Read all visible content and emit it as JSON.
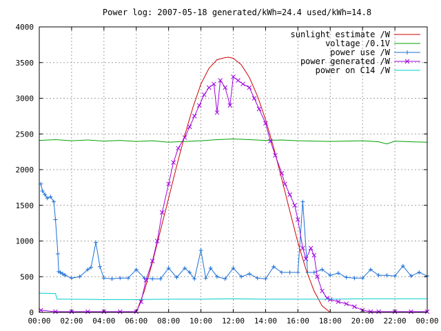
{
  "chart_data": {
    "type": "line",
    "title": "Power log: 2007-05-18 generated/kWh=24.4 used/kWh=14.8",
    "xlabel": "",
    "ylabel": "",
    "xlim": [
      0,
      24
    ],
    "ylim": [
      0,
      4000
    ],
    "grid": true,
    "legend_position": "top-right",
    "x_ticks": [
      "00:00",
      "02:00",
      "04:00",
      "06:00",
      "08:00",
      "10:00",
      "12:00",
      "14:00",
      "16:00",
      "18:00",
      "20:00",
      "22:00",
      "00:00"
    ],
    "y_ticks": [
      "0",
      "500",
      "1000",
      "1500",
      "2000",
      "2500",
      "3000",
      "3500",
      "4000"
    ],
    "series": [
      {
        "name": "sunlight estimate /W",
        "color": "#cc0000",
        "marker": "none",
        "x": [
          6.0,
          6.5,
          7.0,
          7.5,
          8.0,
          8.5,
          9.0,
          9.5,
          10.0,
          10.5,
          11.0,
          11.5,
          11.7,
          12.0,
          12.5,
          13.0,
          13.5,
          14.0,
          14.5,
          15.0,
          15.5,
          16.0,
          16.5,
          17.0,
          17.5,
          18.0
        ],
        "y": [
          0,
          300,
          700,
          1150,
          1600,
          2050,
          2480,
          2870,
          3200,
          3420,
          3540,
          3570,
          3575,
          3560,
          3470,
          3290,
          3030,
          2700,
          2310,
          1870,
          1420,
          980,
          600,
          300,
          90,
          0
        ]
      },
      {
        "name": "voltage /0.1V",
        "color": "#00a000",
        "marker": "none",
        "x": [
          0,
          1,
          2,
          3,
          4,
          5,
          6,
          7,
          8,
          9,
          10,
          11,
          12,
          13,
          14,
          15,
          16,
          17,
          18,
          19,
          20,
          21,
          21.5,
          22,
          23,
          24
        ],
        "y": [
          2410,
          2420,
          2405,
          2415,
          2400,
          2410,
          2395,
          2405,
          2385,
          2395,
          2405,
          2420,
          2430,
          2420,
          2410,
          2415,
          2405,
          2400,
          2395,
          2400,
          2405,
          2390,
          2360,
          2400,
          2390,
          2385
        ]
      },
      {
        "name": "power use /W",
        "color": "#1a6fd6",
        "marker": "plus",
        "x": [
          0.1,
          0.2,
          0.35,
          0.5,
          0.7,
          0.9,
          1.0,
          1.15,
          1.2,
          1.3,
          1.45,
          1.6,
          2.0,
          2.5,
          3.0,
          3.2,
          3.5,
          3.75,
          4.0,
          4.5,
          5.0,
          5.5,
          6.0,
          6.5,
          7.0,
          7.5,
          8.0,
          8.5,
          9.0,
          9.3,
          9.6,
          10.0,
          10.3,
          10.6,
          11.0,
          11.5,
          12.0,
          12.5,
          13.0,
          13.5,
          14.0,
          14.5,
          15.0,
          15.5,
          16.0,
          16.3,
          16.6,
          17.0,
          17.5,
          18.0,
          18.5,
          19.0,
          19.5,
          20.0,
          20.5,
          21.0,
          21.5,
          22.0,
          22.5,
          23.0,
          23.5,
          24.0
        ],
        "y": [
          1800,
          1700,
          1650,
          1600,
          1620,
          1550,
          1300,
          820,
          570,
          560,
          540,
          520,
          480,
          500,
          600,
          630,
          980,
          640,
          480,
          470,
          480,
          480,
          600,
          480,
          470,
          470,
          620,
          490,
          620,
          560,
          470,
          870,
          480,
          620,
          500,
          470,
          620,
          500,
          540,
          480,
          470,
          640,
          560,
          560,
          560,
          1550,
          560,
          560,
          600,
          520,
          550,
          490,
          480,
          480,
          600,
          520,
          520,
          510,
          650,
          510,
          560,
          510
        ]
      },
      {
        "name": "power generated /W",
        "color": "#a000e0",
        "marker": "x",
        "x": [
          0.1,
          1.0,
          2.0,
          3.0,
          4.0,
          5.0,
          6.0,
          6.3,
          6.6,
          7.0,
          7.3,
          7.6,
          8.0,
          8.3,
          8.6,
          9.0,
          9.3,
          9.6,
          9.9,
          10.2,
          10.5,
          10.8,
          11.0,
          11.2,
          11.5,
          11.8,
          12.0,
          12.3,
          12.6,
          13.0,
          13.3,
          13.6,
          14.0,
          14.3,
          14.6,
          15.0,
          15.2,
          15.5,
          15.8,
          16.0,
          16.3,
          16.5,
          16.8,
          17.0,
          17.2,
          17.5,
          17.8,
          18.0,
          18.5,
          19.0,
          19.5,
          20.0,
          20.5,
          21.0,
          22.0,
          23.0,
          24.0
        ],
        "y": [
          30,
          10,
          10,
          10,
          10,
          10,
          10,
          150,
          450,
          720,
          1000,
          1400,
          1800,
          2100,
          2300,
          2450,
          2600,
          2750,
          2900,
          3050,
          3150,
          3200,
          2800,
          3250,
          3150,
          2900,
          3300,
          3250,
          3200,
          3150,
          3000,
          2850,
          2650,
          2400,
          2200,
          1950,
          1800,
          1650,
          1500,
          1300,
          900,
          750,
          900,
          800,
          500,
          300,
          200,
          180,
          150,
          120,
          80,
          30,
          10,
          10,
          10,
          10,
          10
        ]
      },
      {
        "name": "power on C14 /W",
        "color": "#00cccc",
        "marker": "none",
        "x": [
          0,
          1.0,
          1.1,
          2,
          4,
          6,
          8,
          10,
          12,
          14,
          16,
          18,
          20,
          22,
          24
        ],
        "y": [
          270,
          265,
          185,
          185,
          180,
          180,
          185,
          185,
          190,
          185,
          185,
          185,
          190,
          190,
          190
        ]
      }
    ]
  }
}
